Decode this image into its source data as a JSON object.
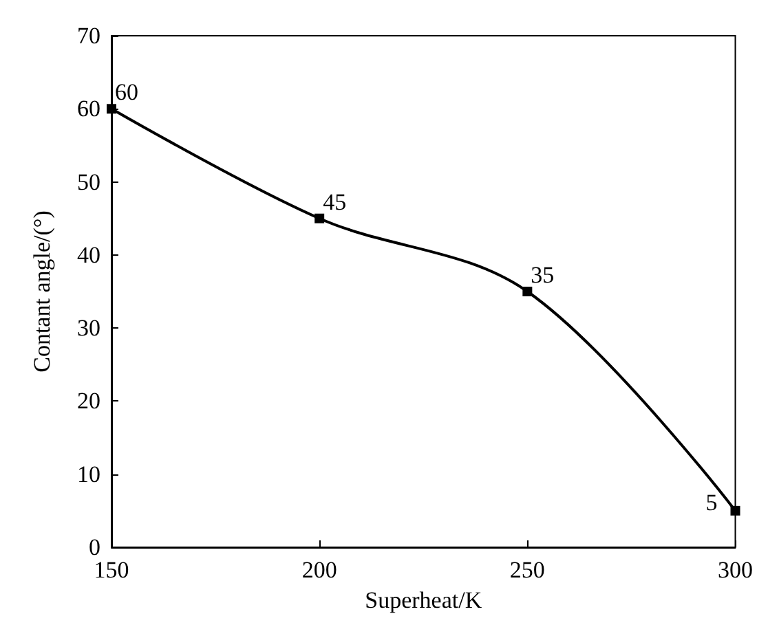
{
  "chart_data": {
    "type": "line",
    "xlabel": "Superheat/K",
    "ylabel": "Contant angle/(°)",
    "x": [
      150,
      200,
      250,
      300
    ],
    "series": [
      {
        "color": "#000000",
        "values": [
          60,
          45,
          35,
          5
        ]
      }
    ],
    "xlim": [
      150,
      300
    ],
    "xticks": [
      150,
      200,
      250,
      300
    ],
    "ylim": [
      0,
      70
    ],
    "yticks": [
      0,
      10,
      20,
      30,
      40,
      50,
      60,
      70
    ],
    "grid": false,
    "marker": "square",
    "line_style": "solid",
    "data_labels": true
  }
}
